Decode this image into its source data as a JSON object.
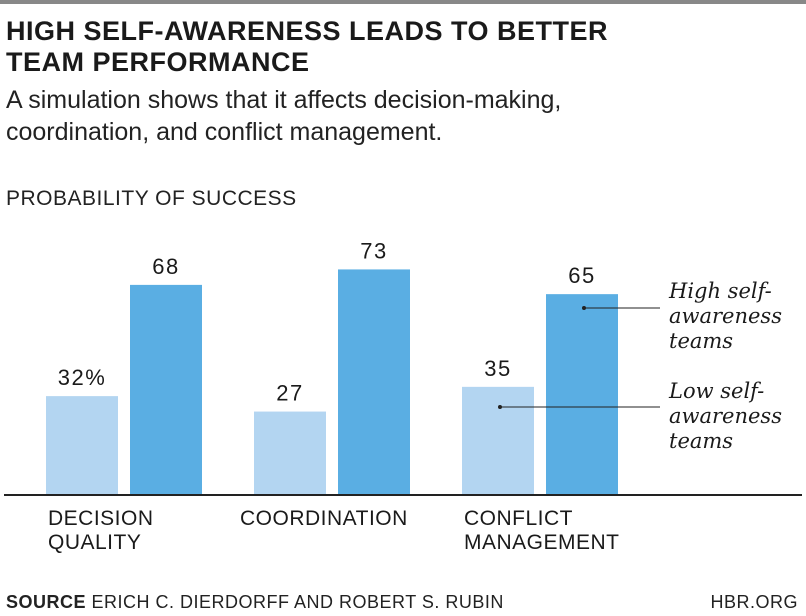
{
  "header": {
    "title_line1": "HIGH SELF-AWARENESS LEADS TO BETTER",
    "title_line2": "TEAM PERFORMANCE",
    "subtitle_line1": "A simulation shows that it affects decision-making,",
    "subtitle_line2": "coordination, and conflict management."
  },
  "footer": {
    "source_label": "SOURCE",
    "source_text": "ERICH C. DIERDORFF AND ROBERT S. RUBIN",
    "credit": "HBR.ORG"
  },
  "colors": {
    "low": "#b3d5f1",
    "high": "#5aaee3",
    "axis": "#222222",
    "text": "#1a1a1a"
  },
  "chart_data": {
    "type": "bar",
    "ylabel": "PROBABILITY OF SUCCESS",
    "ylim": [
      0,
      100
    ],
    "categories": [
      {
        "line1": "DECISION",
        "line2": "QUALITY"
      },
      {
        "line1": "COORDINATION",
        "line2": ""
      },
      {
        "line1": "CONFLICT",
        "line2": "MANAGEMENT"
      }
    ],
    "series": [
      {
        "name": "Low self-awareness teams",
        "legend_lines": [
          "Low self-",
          "awareness",
          "teams"
        ],
        "values": [
          32,
          27,
          35
        ],
        "labels": [
          "32%",
          "27",
          "35"
        ]
      },
      {
        "name": "High self-awareness teams",
        "legend_lines": [
          "High self-",
          "awareness",
          "teams"
        ],
        "values": [
          68,
          73,
          65
        ],
        "labels": [
          "68",
          "73",
          "65"
        ]
      }
    ],
    "legend_placement": "right",
    "grid": false
  }
}
